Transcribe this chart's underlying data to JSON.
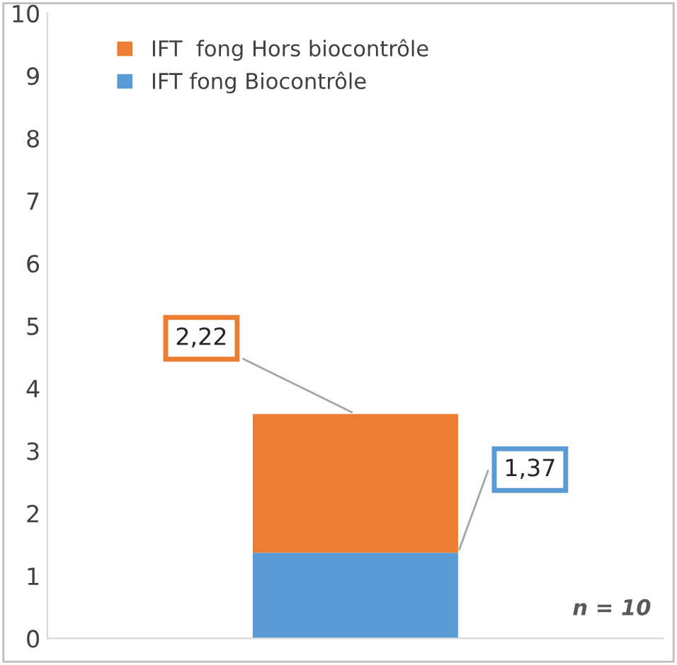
{
  "chart_data": {
    "type": "bar",
    "stacked": true,
    "categories": [
      null
    ],
    "series": [
      {
        "name": "IFT fong Biocontrôle",
        "color": "#5b9bd5",
        "values": [
          1.37
        ],
        "value_labels": [
          "1,37"
        ]
      },
      {
        "name": "IFT  fong Hors biocontrôle",
        "color": "#ed7d31",
        "values": [
          2.22
        ],
        "value_labels": [
          "2,22"
        ]
      }
    ],
    "ylim": [
      0,
      10
    ],
    "yticks": [
      0,
      1,
      2,
      3,
      4,
      5,
      6,
      7,
      8,
      9,
      10
    ],
    "grid": false,
    "legend": "top left",
    "annotations": [
      "n = 10"
    ]
  }
}
